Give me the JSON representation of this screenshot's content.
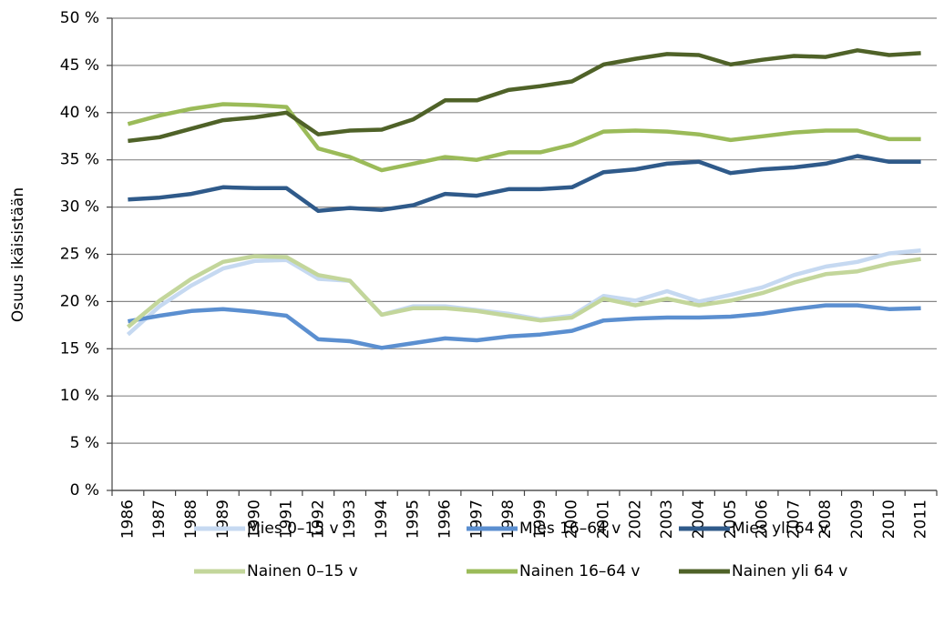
{
  "chart_data": {
    "type": "line",
    "y_label": "Osuus ikäisistään",
    "categories": [
      "1986",
      "1987",
      "1988",
      "1989",
      "1990",
      "1991",
      "1992",
      "1993",
      "1994",
      "1995",
      "1996",
      "1997",
      "1998",
      "1999",
      "2000",
      "2001",
      "2002",
      "2003",
      "2004",
      "2005",
      "2006",
      "2007",
      "2008",
      "2009",
      "2010",
      "2011"
    ],
    "ylim": [
      0,
      50
    ],
    "yticks": [
      {
        "value": 0,
        "label": "0 %"
      },
      {
        "value": 5,
        "label": "5 %"
      },
      {
        "value": 10,
        "label": "10 %"
      },
      {
        "value": 15,
        "label": "15 %"
      },
      {
        "value": 20,
        "label": "20 %"
      },
      {
        "value": 25,
        "label": "25 %"
      },
      {
        "value": 30,
        "label": "30 %"
      },
      {
        "value": 35,
        "label": "35 %"
      },
      {
        "value": 40,
        "label": "40 %"
      },
      {
        "value": 45,
        "label": "45 %"
      },
      {
        "value": 50,
        "label": "50 %"
      }
    ],
    "grid": true,
    "legend": "bottom",
    "series": [
      {
        "name": "Mies 0–15 v",
        "color": "#c6d9f1",
        "values": [
          16.5,
          19.5,
          21.7,
          23.5,
          24.3,
          24.4,
          22.4,
          22.2,
          18.6,
          19.5,
          19.5,
          19.1,
          18.7,
          18.1,
          18.5,
          20.6,
          20.1,
          21.1,
          20.0,
          20.7,
          21.5,
          22.8,
          23.7,
          24.2,
          25.1,
          25.4
        ]
      },
      {
        "name": "Mies 16–64 v",
        "color": "#5b8fd0",
        "values": [
          17.9,
          18.5,
          19.0,
          19.2,
          18.9,
          18.5,
          16.0,
          15.8,
          15.1,
          15.6,
          16.1,
          15.9,
          16.3,
          16.5,
          16.9,
          18.0,
          18.2,
          18.3,
          18.3,
          18.4,
          18.7,
          19.2,
          19.6,
          19.6,
          19.2,
          19.3
        ]
      },
      {
        "name": "Mies yli 64 v",
        "color": "#2f5a8a",
        "values": [
          30.8,
          31.0,
          31.4,
          32.1,
          32.0,
          32.0,
          29.6,
          29.9,
          29.7,
          30.2,
          31.4,
          31.2,
          31.9,
          31.9,
          32.1,
          33.7,
          34.0,
          34.6,
          34.8,
          33.6,
          34.0,
          34.2,
          34.6,
          35.4,
          34.8,
          34.8
        ]
      },
      {
        "name": "Nainen 0–15 v",
        "color": "#c3d69b",
        "values": [
          17.3,
          20.1,
          22.4,
          24.2,
          24.8,
          24.7,
          22.8,
          22.2,
          18.6,
          19.3,
          19.3,
          19.0,
          18.5,
          18.0,
          18.3,
          20.3,
          19.6,
          20.3,
          19.6,
          20.1,
          20.9,
          22.0,
          22.9,
          23.2,
          24.0,
          24.5
        ]
      },
      {
        "name": "Nainen 16–64 v",
        "color": "#9bbb59",
        "values": [
          38.8,
          39.7,
          40.4,
          40.9,
          40.8,
          40.6,
          36.2,
          35.3,
          33.9,
          34.6,
          35.3,
          35.0,
          35.8,
          35.8,
          36.6,
          38.0,
          38.1,
          38.0,
          37.7,
          37.1,
          37.5,
          37.9,
          38.1,
          38.1,
          37.2,
          37.2
        ]
      },
      {
        "name": "Nainen yli 64 v",
        "color": "#4f6228",
        "values": [
          37.0,
          37.4,
          38.3,
          39.2,
          39.5,
          40.0,
          37.7,
          38.1,
          38.2,
          39.3,
          41.3,
          41.3,
          42.4,
          42.8,
          43.3,
          45.1,
          45.7,
          46.2,
          46.1,
          45.1,
          45.6,
          46.0,
          45.9,
          46.6,
          46.1,
          46.3
        ]
      }
    ]
  }
}
